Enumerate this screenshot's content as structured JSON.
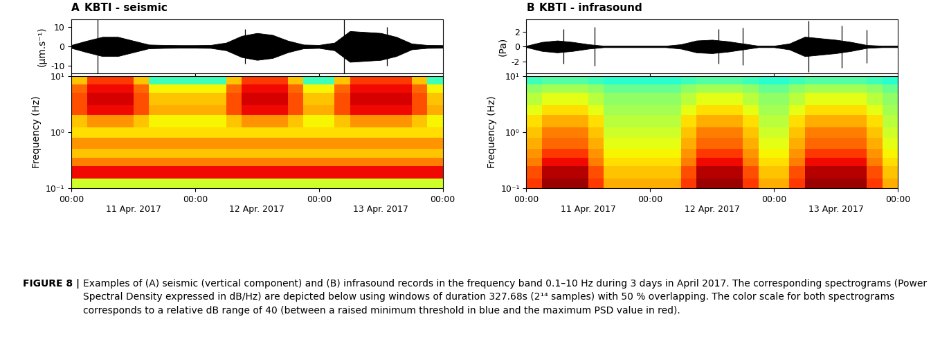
{
  "chart_data": [
    {
      "type": "line",
      "panel": "A",
      "title": "KBTI - seismic",
      "ylabel": "(μm.s⁻¹)",
      "color": "#000000",
      "x": [
        0,
        0.125,
        0.25,
        0.375,
        0.5,
        0.625,
        0.75,
        0.875,
        1,
        1.125,
        1.25,
        1.375,
        1.5,
        1.625,
        1.75,
        1.875,
        2,
        2.125,
        2.25,
        2.375,
        2.5,
        2.625,
        2.75,
        2.875,
        3
      ],
      "values": [
        0.8,
        3,
        5,
        5,
        3,
        1,
        0.8,
        0.7,
        0.7,
        0.8,
        2,
        5.5,
        7,
        6,
        3,
        1,
        0.8,
        2,
        8,
        7.5,
        7,
        5,
        1.5,
        0.8,
        0.7
      ],
      "peaks": {
        "x": [
          0.21,
          1.4,
          2.2,
          2.55
        ],
        "values": [
          14,
          9,
          14,
          10
        ]
      },
      "xlim": [
        0,
        3
      ],
      "xticks": [
        0,
        1,
        2,
        3
      ],
      "ylim": [
        -14,
        14
      ],
      "yticks": [
        -10,
        0,
        10
      ],
      "tick_labels": "y"
    },
    {
      "type": "heatmap",
      "ylabel": "Frequency (Hz)",
      "log": "y",
      "x_edges": [
        0,
        0.125,
        0.25,
        0.375,
        0.5,
        0.625,
        0.75,
        0.875,
        1,
        1.125,
        1.25,
        1.375,
        1.5,
        1.625,
        1.75,
        1.875,
        2,
        2.125,
        2.25,
        2.375,
        2.5,
        2.625,
        2.75,
        2.875,
        3
      ],
      "y_edges": [
        0.1,
        0.15,
        0.25,
        0.35,
        0.5,
        0.8,
        1.2,
        2,
        3,
        5,
        7,
        10
      ],
      "cells": [
        [
          24,
          24,
          24,
          24,
          24,
          24,
          24,
          24,
          24,
          24,
          24,
          24,
          24,
          24,
          24,
          24,
          24,
          24,
          24,
          24,
          24,
          24,
          24,
          24
        ],
        [
          36,
          36,
          36,
          36,
          36,
          36,
          36,
          36,
          36,
          36,
          36,
          36,
          36,
          36,
          36,
          36,
          36,
          36,
          36,
          36,
          36,
          36,
          36,
          36
        ],
        [
          31,
          31,
          31,
          31,
          31,
          31,
          31,
          31,
          31,
          31,
          31,
          31,
          31,
          31,
          31,
          31,
          31,
          31,
          31,
          31,
          31,
          31,
          31,
          31
        ],
        [
          28,
          28,
          28,
          28,
          28,
          28,
          28,
          28,
          28,
          28,
          28,
          28,
          28,
          28,
          28,
          28,
          28,
          28,
          28,
          28,
          28,
          28,
          28,
          28
        ],
        [
          30,
          30,
          30,
          30,
          30,
          30,
          30,
          30,
          30,
          30,
          30,
          30,
          30,
          30,
          30,
          30,
          30,
          30,
          30,
          30,
          30,
          30,
          30,
          30
        ],
        [
          27,
          27,
          27,
          27,
          27,
          27,
          27,
          27,
          27,
          27,
          27,
          27,
          27,
          27,
          27,
          27,
          27,
          27,
          27,
          27,
          27,
          27,
          27,
          27
        ],
        [
          28,
          30,
          30,
          30,
          28,
          26,
          26,
          26,
          26,
          26,
          28,
          30,
          30,
          30,
          28,
          26,
          26,
          28,
          30,
          30,
          30,
          30,
          28,
          26
        ],
        [
          33,
          36,
          36,
          36,
          33,
          29,
          29,
          29,
          29,
          29,
          33,
          36,
          36,
          36,
          33,
          29,
          29,
          33,
          36,
          36,
          36,
          36,
          33,
          29
        ],
        [
          33,
          37,
          37,
          37,
          33,
          28,
          28,
          28,
          28,
          28,
          33,
          37,
          37,
          37,
          33,
          28,
          28,
          33,
          37,
          37,
          37,
          37,
          33,
          28
        ],
        [
          32,
          36,
          36,
          36,
          32,
          26,
          26,
          26,
          26,
          26,
          32,
          36,
          36,
          36,
          32,
          26,
          26,
          32,
          36,
          36,
          36,
          36,
          32,
          26
        ],
        [
          28,
          34,
          34,
          34,
          28,
          17,
          17,
          17,
          17,
          17,
          28,
          34,
          34,
          34,
          28,
          17,
          17,
          28,
          34,
          34,
          34,
          34,
          28,
          17
        ]
      ],
      "clim": [
        0,
        40
      ],
      "xlim": [
        0,
        3
      ],
      "xticks": [
        {
          "value": 0,
          "label": "00:00"
        },
        {
          "value": 1,
          "label": "00:00"
        },
        {
          "value": 2,
          "label": "00:00"
        },
        {
          "value": 3,
          "label": "00:00"
        }
      ],
      "date_labels": [
        {
          "value": 0.5,
          "label": "11 Apr. 2017"
        },
        {
          "value": 1.5,
          "label": "12 Apr. 2017"
        },
        {
          "value": 2.5,
          "label": "13 Apr. 2017"
        }
      ],
      "ylim": [
        0.1,
        10
      ],
      "yticks": [
        {
          "value": 0.1,
          "label": "10⁻¹"
        },
        {
          "value": 1,
          "label": "10⁰"
        },
        {
          "value": 10,
          "label": "10¹"
        }
      ]
    },
    {
      "type": "line",
      "panel": "B",
      "title": "KBTI - infrasound",
      "ylabel": "(Pa)",
      "color": "#000000",
      "x": [
        0,
        0.125,
        0.25,
        0.375,
        0.5,
        0.625,
        0.75,
        0.875,
        1,
        1.125,
        1.25,
        1.375,
        1.5,
        1.625,
        1.75,
        1.875,
        2,
        2.125,
        2.25,
        2.375,
        2.5,
        2.625,
        2.75,
        2.875,
        3
      ],
      "values": [
        0.1,
        0.6,
        0.8,
        0.6,
        0.3,
        0.1,
        0.1,
        0.1,
        0.1,
        0.1,
        0.3,
        0.8,
        0.9,
        0.7,
        0.4,
        0.1,
        0.1,
        0.4,
        1.3,
        1.1,
        0.9,
        0.6,
        0.2,
        0.1,
        0.1
      ],
      "peaks": {
        "x": [
          0.3,
          0.55,
          1.55,
          1.75,
          2.28,
          2.55,
          2.75
        ],
        "values": [
          2.3,
          2.6,
          2.3,
          2.5,
          3.4,
          2.8,
          2.2
        ]
      },
      "xlim": [
        0,
        3
      ],
      "xticks": [
        0,
        1,
        2,
        3
      ],
      "ylim": [
        -3.6,
        3.6
      ],
      "yticks": [
        -2,
        0,
        2
      ],
      "tick_labels": "y"
    },
    {
      "type": "heatmap",
      "ylabel": "Frequency (Hz)",
      "log": "y",
      "x_edges": [
        0,
        0.125,
        0.25,
        0.375,
        0.5,
        0.625,
        0.75,
        0.875,
        1,
        1.125,
        1.25,
        1.375,
        1.5,
        1.625,
        1.75,
        1.875,
        2,
        2.125,
        2.25,
        2.375,
        2.5,
        2.625,
        2.75,
        2.875,
        3
      ],
      "y_edges": [
        0.1,
        0.15,
        0.25,
        0.35,
        0.5,
        0.8,
        1.2,
        2,
        3,
        5,
        7,
        10
      ],
      "cells": [
        [
          34,
          39,
          39,
          39,
          34,
          29,
          29,
          29,
          29,
          29,
          34,
          39,
          39,
          39,
          34,
          29,
          29,
          34,
          39,
          39,
          39,
          39,
          34,
          29
        ],
        [
          33,
          38,
          38,
          38,
          33,
          28,
          28,
          28,
          28,
          28,
          33,
          38,
          38,
          38,
          33,
          28,
          28,
          33,
          38,
          38,
          38,
          38,
          33,
          28
        ],
        [
          31,
          36,
          36,
          36,
          31,
          27,
          27,
          27,
          27,
          27,
          31,
          36,
          36,
          36,
          31,
          27,
          27,
          31,
          36,
          36,
          36,
          36,
          31,
          27
        ],
        [
          30,
          34,
          34,
          34,
          30,
          26,
          26,
          26,
          26,
          26,
          30,
          34,
          34,
          34,
          30,
          26,
          26,
          30,
          34,
          34,
          34,
          34,
          30,
          26
        ],
        [
          29,
          32,
          32,
          32,
          29,
          25,
          25,
          25,
          25,
          25,
          29,
          32,
          32,
          32,
          29,
          25,
          25,
          29,
          32,
          32,
          32,
          32,
          29,
          25
        ],
        [
          28,
          31,
          31,
          31,
          28,
          24,
          24,
          24,
          24,
          24,
          28,
          31,
          31,
          31,
          28,
          24,
          24,
          28,
          31,
          31,
          31,
          31,
          28,
          24
        ],
        [
          27,
          29,
          29,
          29,
          27,
          23,
          23,
          23,
          23,
          23,
          27,
          29,
          29,
          29,
          27,
          23,
          23,
          27,
          29,
          29,
          29,
          29,
          27,
          23
        ],
        [
          25,
          27,
          27,
          27,
          25,
          22,
          22,
          22,
          22,
          22,
          25,
          27,
          27,
          27,
          25,
          22,
          22,
          25,
          27,
          27,
          27,
          27,
          25,
          22
        ],
        [
          23,
          25,
          25,
          25,
          23,
          21,
          21,
          21,
          21,
          21,
          23,
          25,
          25,
          25,
          23,
          21,
          21,
          23,
          25,
          25,
          25,
          25,
          23,
          21
        ],
        [
          21,
          22,
          22,
          22,
          21,
          19,
          19,
          19,
          19,
          19,
          21,
          22,
          22,
          22,
          21,
          19,
          19,
          21,
          22,
          22,
          22,
          22,
          21,
          19
        ],
        [
          17,
          18,
          18,
          18,
          17,
          16,
          16,
          16,
          16,
          16,
          17,
          18,
          18,
          18,
          17,
          16,
          16,
          17,
          18,
          18,
          18,
          18,
          17,
          16
        ]
      ],
      "clim": [
        0,
        40
      ],
      "xlim": [
        0,
        3
      ],
      "xticks": [
        {
          "value": 0,
          "label": "00:00"
        },
        {
          "value": 1,
          "label": "00:00"
        },
        {
          "value": 2,
          "label": "00:00"
        },
        {
          "value": 3,
          "label": "00:00"
        }
      ],
      "date_labels": [
        {
          "value": 0.5,
          "label": "11 Apr. 2017"
        },
        {
          "value": 1.5,
          "label": "12 Apr. 2017"
        },
        {
          "value": 2.5,
          "label": "13 Apr. 2017"
        }
      ],
      "ylim": [
        0.1,
        10
      ],
      "yticks": [
        {
          "value": 0.1,
          "label": "10⁻¹"
        },
        {
          "value": 1,
          "label": "10⁰"
        },
        {
          "value": 10,
          "label": "10¹"
        }
      ]
    }
  ],
  "caption_label": "FIGURE 8 |",
  "caption": "Examples of (A) seismic (vertical component) and (B) infrasound records in the frequency band 0.1–10 Hz during 3 days in April 2017. The corresponding spectrograms (Power Spectral Density expressed in dB/Hz) are depicted below using windows of duration 327.68s (2¹⁴ samples) with 50 % overlapping. The color scale for both spectrograms corresponds to a relative dB range of 40 (between a raised minimum threshold in blue and the maximum PSD value in red)."
}
